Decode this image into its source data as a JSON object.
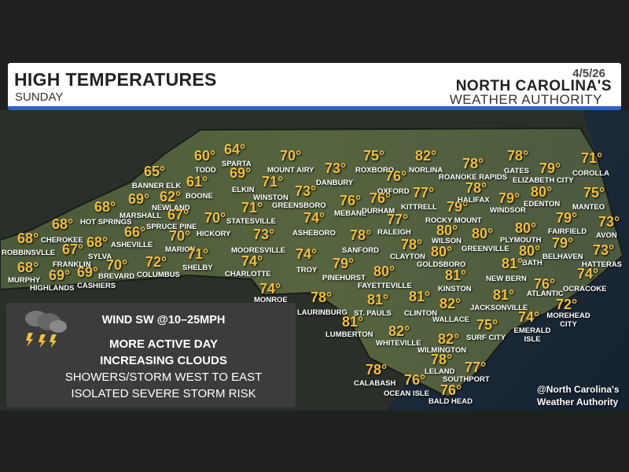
{
  "header": {
    "title": "HIGH TEMPERATURES",
    "subtitle": "SUNDAY",
    "date": "4/5/26",
    "logo_line1": "NORTH CAROLINA'S",
    "logo_line2": "WEATHER AUTHORITY"
  },
  "legend": {
    "icon": "thunderstorm-icon",
    "wind": "WIND SW @10–25MPH",
    "line1": "MORE ACTIVE DAY",
    "line2": "INCREASING CLOUDS",
    "line3": "SHOWERS/STORM WEST TO EAST",
    "line4": "ISOLATED SEVERE STORM RISK"
  },
  "credit": {
    "line1": "@North Carolina's",
    "line2": "Weather Authority"
  },
  "colors": {
    "temp": "#f2be3c",
    "header_accent": "#2f62c9",
    "logo_accent": "#c8302c"
  },
  "cities": [
    {
      "name": "TODD",
      "temp": "60°"
    },
    {
      "name": "SPARTA",
      "temp": "64°"
    },
    {
      "name": "BANNER ELK",
      "temp": "65°"
    },
    {
      "name": "BOONE",
      "temp": "61°"
    },
    {
      "name": "NEWLAND",
      "temp": "62°"
    },
    {
      "name": "MARSHALL",
      "temp": "69°"
    },
    {
      "name": "HOT SPRINGS",
      "temp": "68°"
    },
    {
      "name": "SPRUCE PINE",
      "temp": "67°"
    },
    {
      "name": "CHEROKEE",
      "temp": "68°"
    },
    {
      "name": "ASHEVILLE",
      "temp": "66°"
    },
    {
      "name": "MARION",
      "temp": "70°"
    },
    {
      "name": "HICKORY",
      "temp": "70°"
    },
    {
      "name": "ROBBINSVLLE",
      "temp": "68°"
    },
    {
      "name": "SYLVA",
      "temp": "68°"
    },
    {
      "name": "FRANKLIN",
      "temp": "67°"
    },
    {
      "name": "CASHIERS",
      "temp": "69°"
    },
    {
      "name": "BREVARD",
      "temp": "70°"
    },
    {
      "name": "COLUMBUS",
      "temp": "72°"
    },
    {
      "name": "SHELBY",
      "temp": "71°"
    },
    {
      "name": "MURPHY",
      "temp": "68°"
    },
    {
      "name": "HIGHLANDS",
      "temp": "69°"
    },
    {
      "name": "ELKIN",
      "temp": "69°"
    },
    {
      "name": "MOUNT AIRY",
      "temp": "70°"
    },
    {
      "name": "WINSTON",
      "temp": "71°"
    },
    {
      "name": "STATESVILLE",
      "temp": "71°"
    },
    {
      "name": "DANBURY",
      "temp": "73°"
    },
    {
      "name": "GREENSBORO",
      "temp": "73°"
    },
    {
      "name": "ROXBORO",
      "temp": "75°"
    },
    {
      "name": "NORLINA",
      "temp": "82°"
    },
    {
      "name": "OXFORD",
      "temp": "76°"
    },
    {
      "name": "MEBANE",
      "temp": "76°"
    },
    {
      "name": "DURHAM",
      "temp": "76°"
    },
    {
      "name": "KITTRELL",
      "temp": "77°"
    },
    {
      "name": "ASHEBORO",
      "temp": "74°"
    },
    {
      "name": "RALEIGH",
      "temp": "77°"
    },
    {
      "name": "MOORESVILLE",
      "temp": "73°"
    },
    {
      "name": "SANFORD",
      "temp": "78°"
    },
    {
      "name": "CLAYTON",
      "temp": "78°"
    },
    {
      "name": "CHARLOTTE",
      "temp": "74°"
    },
    {
      "name": "TROY",
      "temp": "74°"
    },
    {
      "name": "PINEHURST",
      "temp": "79°"
    },
    {
      "name": "FAYETTEVILLE",
      "temp": "80°"
    },
    {
      "name": "MONROE",
      "temp": "74°"
    },
    {
      "name": "GOLDSBORO",
      "temp": "80°"
    },
    {
      "name": "ROCKY MOUNT",
      "temp": "79°"
    },
    {
      "name": "WILSON",
      "temp": "80°"
    },
    {
      "name": "GREENVILLE",
      "temp": "80°"
    },
    {
      "name": "ROANOKE RAPIDS",
      "temp": "78°"
    },
    {
      "name": "HALIFAX",
      "temp": "78°"
    },
    {
      "name": "GATES",
      "temp": "78°"
    },
    {
      "name": "ELIZABETH CITY",
      "temp": "79°"
    },
    {
      "name": "WINDSOR",
      "temp": "79°"
    },
    {
      "name": "EDENTON",
      "temp": "80°"
    },
    {
      "name": "COROLLA",
      "temp": "71°"
    },
    {
      "name": "MANTEO",
      "temp": "75°"
    },
    {
      "name": "FAIRFIELD",
      "temp": "79°"
    },
    {
      "name": "AVON",
      "temp": "73°"
    },
    {
      "name": "PLYMOUTH",
      "temp": "80°"
    },
    {
      "name": "BATH",
      "temp": "80°"
    },
    {
      "name": "BELHAVEN",
      "temp": "79°"
    },
    {
      "name": "HATTERAS",
      "temp": "73°"
    },
    {
      "name": "KINSTON",
      "temp": "81°"
    },
    {
      "name": "NEW BERN",
      "temp": "81°"
    },
    {
      "name": "ATLANTIC",
      "temp": "76°"
    },
    {
      "name": "OCRACOKE",
      "temp": "74°"
    },
    {
      "name": "LAURINBURG",
      "temp": "78°"
    },
    {
      "name": "ST. PAULS",
      "temp": "81°"
    },
    {
      "name": "CLINTON",
      "temp": "81°"
    },
    {
      "name": "WALLACE",
      "temp": "82°"
    },
    {
      "name": "JACKSONVILLE",
      "temp": "81°"
    },
    {
      "name": "MOREHEAD CITY",
      "temp": "72°"
    },
    {
      "name": "LUMBERTON",
      "temp": "81°"
    },
    {
      "name": "WHITEVILLE",
      "temp": "82°"
    },
    {
      "name": "SURF CITY",
      "temp": "75°"
    },
    {
      "name": "EMERALD ISLE",
      "temp": "74°"
    },
    {
      "name": "WILMINGTON",
      "temp": "82°"
    },
    {
      "name": "LELAND",
      "temp": "78°"
    },
    {
      "name": "SOUTHPORT",
      "temp": "77°"
    },
    {
      "name": "CALABASH",
      "temp": "78°"
    },
    {
      "name": "OCEAN ISLE",
      "temp": "76°"
    },
    {
      "name": "BALD HEAD",
      "temp": "76°"
    }
  ]
}
